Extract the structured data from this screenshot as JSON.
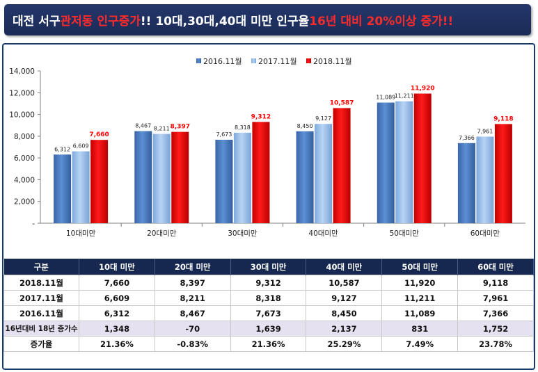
{
  "title": {
    "part1": "대전 서구 ",
    "part2": "관저동 인구증가",
    "part3": " !! 10대,30대,40대 미만 인구율 ",
    "part4": "16년 대비 20%이상 증가!!"
  },
  "colors": {
    "title_bg": "#1b2b57",
    "title_red": "#ff2a2a",
    "series": [
      "#4a7bc0",
      "#9dc2ec",
      "#e00000"
    ],
    "label_highlight": "#ff0000",
    "table_header_bg": "#16284f",
    "table_highlight_row": "#e6e1f0"
  },
  "chart_data": {
    "type": "bar",
    "categories": [
      "10대미만",
      "20대미만",
      "30대미만",
      "40대미만",
      "50대미만",
      "60대미만"
    ],
    "series": [
      {
        "name": "2016.11월",
        "values": [
          6312,
          8467,
          7673,
          8450,
          11089,
          7366
        ],
        "labels": [
          "6,312",
          "8,467",
          "7,673",
          "8,450",
          "11,089",
          "7,366"
        ]
      },
      {
        "name": "2017.11월",
        "values": [
          6609,
          8211,
          8318,
          9127,
          11211,
          7961
        ],
        "labels": [
          "6,609",
          "8,211",
          "8,318",
          "9,127",
          "11,211",
          "7,961"
        ]
      },
      {
        "name": "2018.11월",
        "values": [
          7660,
          8397,
          9312,
          10587,
          11920,
          9118
        ],
        "labels": [
          "7,660",
          "8,397",
          "9,312",
          "10,587",
          "11,920",
          "9,118"
        ]
      }
    ],
    "ylim": [
      0,
      14000
    ],
    "yticks": [
      0,
      2000,
      4000,
      6000,
      8000,
      10000,
      12000,
      14000
    ],
    "ytick_labels": [
      "-",
      "2,000",
      "4,000",
      "6,000",
      "8,000",
      "10,000",
      "12,000",
      "14,000"
    ],
    "legend_position": "top-center",
    "grid": false
  },
  "table": {
    "headers": [
      "구분",
      "10대 미만",
      "20대 미만",
      "30대 미만",
      "40대 미만",
      "50대 미만",
      "60대 미만"
    ],
    "rows": [
      {
        "label": "2018.11월",
        "cells": [
          "7,660",
          "8,397",
          "9,312",
          "10,587",
          "11,920",
          "9,118"
        ]
      },
      {
        "label": "2017.11월",
        "cells": [
          "6,609",
          "8,211",
          "8,318",
          "9,127",
          "11,211",
          "7,961"
        ]
      },
      {
        "label": "2016.11월",
        "cells": [
          "6,312",
          "8,467",
          "7,673",
          "8,450",
          "11,089",
          "7,366"
        ]
      },
      {
        "label": "16년대비 18년 증가수",
        "cells": [
          "1,348",
          "-70",
          "1,639",
          "2,137",
          "831",
          "1,752"
        ]
      },
      {
        "label": "증가율",
        "cells": [
          "21.36%",
          "-0.83%",
          "21.36%",
          "25.29%",
          "7.49%",
          "23.78%"
        ]
      }
    ]
  }
}
